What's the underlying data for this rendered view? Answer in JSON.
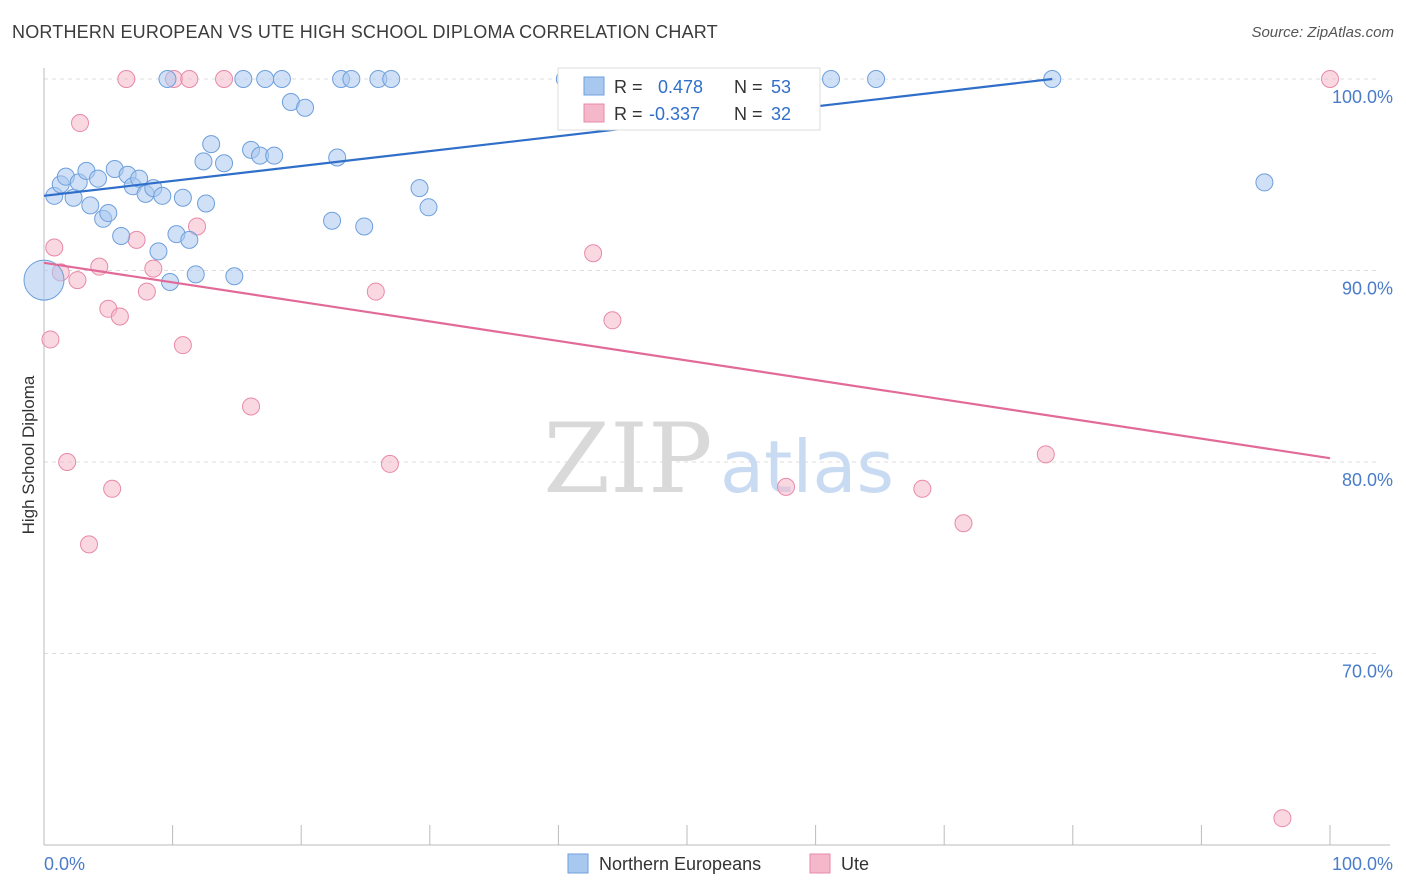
{
  "header": {
    "title": "NORTHERN EUROPEAN VS UTE HIGH SCHOOL DIPLOMA CORRELATION CHART",
    "source": "Source: ZipAtlas.com"
  },
  "watermark": {
    "zip": "ZIP",
    "atlas": "atlas"
  },
  "colors": {
    "blue_fill": "#a9c8f0",
    "blue_stroke": "#6e9fdc",
    "blue_line": "#2f6fc9",
    "pink_fill": "#f5b8cb",
    "pink_stroke": "#e889a8",
    "pink_line": "#e26a98",
    "tick_label": "#4a7cc9",
    "grid": "#dddddd"
  },
  "chart_data": {
    "type": "scatter",
    "title": "NORTHERN EUROPEAN VS UTE HIGH SCHOOL DIPLOMA CORRELATION CHART",
    "xlabel": "",
    "ylabel": "High School Diploma",
    "xlim": [
      0,
      100
    ],
    "ylim": [
      60,
      100
    ],
    "x_tick_labels": [
      "0.0%",
      "100.0%"
    ],
    "y_ticks": [
      70,
      80,
      90,
      100
    ],
    "y_tick_labels": [
      "70.0%",
      "80.0%",
      "90.0%",
      "100.0%"
    ],
    "grid": true,
    "legend_position": "top-center",
    "legend": [
      {
        "r_label": "R =",
        "r_value": "0.478",
        "n_label": "N =",
        "n_value": "53"
      },
      {
        "r_label": "R =",
        "r_value": "-0.337",
        "n_label": "N =",
        "n_value": "32"
      }
    ],
    "series": [
      {
        "name": "Northern Europeans",
        "color": "#a9c8f0",
        "trend": {
          "x": [
            0,
            78.4
          ],
          "y": [
            93.9,
            100.0
          ]
        },
        "points": [
          {
            "x": 0.0,
            "y": 89.5,
            "big": true
          },
          {
            "x": 0.8,
            "y": 93.9
          },
          {
            "x": 1.3,
            "y": 94.5
          },
          {
            "x": 1.7,
            "y": 94.9
          },
          {
            "x": 2.3,
            "y": 93.8
          },
          {
            "x": 2.7,
            "y": 94.6
          },
          {
            "x": 3.3,
            "y": 95.2
          },
          {
            "x": 3.6,
            "y": 93.4
          },
          {
            "x": 4.2,
            "y": 94.8
          },
          {
            "x": 4.6,
            "y": 92.7
          },
          {
            "x": 5.0,
            "y": 93.0
          },
          {
            "x": 5.5,
            "y": 95.3
          },
          {
            "x": 6.0,
            "y": 91.8
          },
          {
            "x": 6.5,
            "y": 95.0
          },
          {
            "x": 6.9,
            "y": 94.4
          },
          {
            "x": 7.4,
            "y": 94.8
          },
          {
            "x": 7.9,
            "y": 94.0
          },
          {
            "x": 8.5,
            "y": 94.3
          },
          {
            "x": 8.9,
            "y": 91.0
          },
          {
            "x": 9.2,
            "y": 93.9
          },
          {
            "x": 9.6,
            "y": 100.0
          },
          {
            "x": 9.8,
            "y": 89.4
          },
          {
            "x": 10.3,
            "y": 91.9
          },
          {
            "x": 10.8,
            "y": 93.8
          },
          {
            "x": 11.3,
            "y": 91.6
          },
          {
            "x": 11.8,
            "y": 89.8
          },
          {
            "x": 12.6,
            "y": 93.5
          },
          {
            "x": 12.4,
            "y": 95.7
          },
          {
            "x": 13.0,
            "y": 96.6
          },
          {
            "x": 14.0,
            "y": 95.6
          },
          {
            "x": 14.8,
            "y": 89.7
          },
          {
            "x": 15.5,
            "y": 100.0
          },
          {
            "x": 16.1,
            "y": 96.3
          },
          {
            "x": 16.8,
            "y": 96.0
          },
          {
            "x": 17.2,
            "y": 100.0
          },
          {
            "x": 17.9,
            "y": 96.0
          },
          {
            "x": 18.5,
            "y": 100.0
          },
          {
            "x": 19.2,
            "y": 98.8
          },
          {
            "x": 20.3,
            "y": 98.5
          },
          {
            "x": 22.4,
            "y": 92.6
          },
          {
            "x": 22.8,
            "y": 95.9
          },
          {
            "x": 23.1,
            "y": 100.0
          },
          {
            "x": 23.9,
            "y": 100.0
          },
          {
            "x": 24.9,
            "y": 92.3
          },
          {
            "x": 26.0,
            "y": 100.0
          },
          {
            "x": 27.0,
            "y": 100.0
          },
          {
            "x": 29.2,
            "y": 94.3
          },
          {
            "x": 29.9,
            "y": 93.3
          },
          {
            "x": 40.5,
            "y": 100.0
          },
          {
            "x": 61.2,
            "y": 100.0
          },
          {
            "x": 64.7,
            "y": 100.0
          },
          {
            "x": 78.4,
            "y": 100.0
          },
          {
            "x": 94.9,
            "y": 94.6
          }
        ]
      },
      {
        "name": "Ute",
        "color": "#f5b8cb",
        "trend": {
          "x": [
            0,
            100
          ],
          "y": [
            90.4,
            80.2
          ]
        },
        "points": [
          {
            "x": 0.5,
            "y": 86.4
          },
          {
            "x": 0.8,
            "y": 91.2
          },
          {
            "x": 1.3,
            "y": 89.9
          },
          {
            "x": 1.8,
            "y": 80.0
          },
          {
            "x": 2.6,
            "y": 89.5
          },
          {
            "x": 2.8,
            "y": 97.7
          },
          {
            "x": 3.5,
            "y": 75.7
          },
          {
            "x": 4.3,
            "y": 90.2
          },
          {
            "x": 5.0,
            "y": 88.0
          },
          {
            "x": 5.3,
            "y": 78.6
          },
          {
            "x": 5.9,
            "y": 87.6
          },
          {
            "x": 6.4,
            "y": 100.0
          },
          {
            "x": 7.2,
            "y": 91.6
          },
          {
            "x": 8.0,
            "y": 88.9
          },
          {
            "x": 8.5,
            "y": 90.1
          },
          {
            "x": 10.1,
            "y": 100.0
          },
          {
            "x": 10.8,
            "y": 86.1
          },
          {
            "x": 11.3,
            "y": 100.0
          },
          {
            "x": 11.9,
            "y": 92.3
          },
          {
            "x": 14.0,
            "y": 100.0
          },
          {
            "x": 16.1,
            "y": 82.9
          },
          {
            "x": 25.8,
            "y": 88.9
          },
          {
            "x": 26.9,
            "y": 79.9
          },
          {
            "x": 42.7,
            "y": 90.9
          },
          {
            "x": 44.2,
            "y": 87.4
          },
          {
            "x": 52.5,
            "y": 100.0
          },
          {
            "x": 57.7,
            "y": 78.7
          },
          {
            "x": 68.3,
            "y": 78.6
          },
          {
            "x": 71.5,
            "y": 76.8
          },
          {
            "x": 77.9,
            "y": 80.4
          },
          {
            "x": 96.3,
            "y": 61.4
          },
          {
            "x": 100.0,
            "y": 100.0
          }
        ]
      }
    ]
  }
}
